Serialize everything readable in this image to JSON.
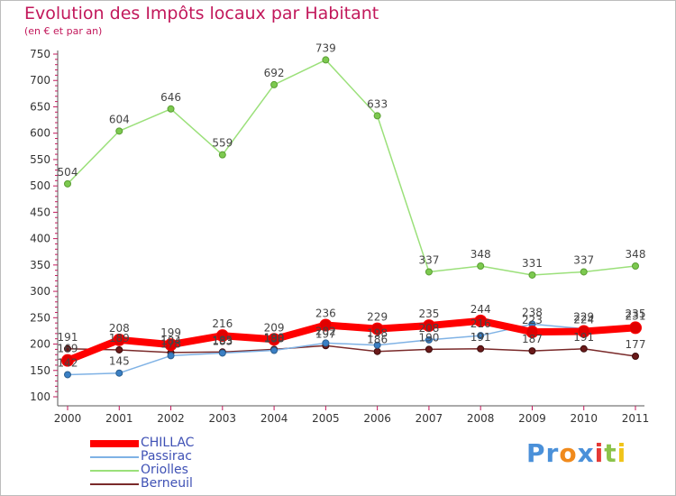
{
  "title": "Evolution des Impôts locaux par Habitant",
  "subtitle": "(en € et par an)",
  "logo": {
    "text": "Proxiti",
    "letters": [
      "P",
      "r",
      "o",
      "x",
      "i",
      "t",
      "i"
    ],
    "colors": [
      "#4a90d9",
      "#4a90d9",
      "#f08a1c",
      "#4a90d9",
      "#e53935",
      "#8bc34a",
      "#f0c419"
    ]
  },
  "chart_data": {
    "type": "line",
    "title": "Evolution des Impôts locaux par Habitant",
    "subtitle": "(en € et par an)",
    "xlabel": "",
    "ylabel": "",
    "categories": [
      "2000",
      "2001",
      "2002",
      "2003",
      "2004",
      "2005",
      "2006",
      "2007",
      "2008",
      "2009",
      "2010",
      "2011"
    ],
    "ylim": [
      100,
      750
    ],
    "yticks": [
      100,
      150,
      200,
      250,
      300,
      350,
      400,
      450,
      500,
      550,
      600,
      650,
      700,
      750
    ],
    "grid": false,
    "legend_position": "bottom-left",
    "series": [
      {
        "name": "CHILLAC",
        "color": "#ff0000",
        "labels": true,
        "values": [
          169,
          208,
          199,
          216,
          209,
          236,
          229,
          235,
          244,
          223,
          224,
          231
        ]
      },
      {
        "name": "Passirac",
        "color": "#5b9bd5",
        "labels": false,
        "values": [
          142,
          145,
          178,
          183,
          188,
          202,
          198,
          208,
          216,
          238,
          229,
          235
        ]
      },
      {
        "name": "Oriolles",
        "color": "#8fd16a",
        "labels": true,
        "values": [
          504,
          604,
          646,
          559,
          692,
          739,
          633,
          337,
          348,
          331,
          337,
          348
        ]
      },
      {
        "name": "Berneuil",
        "color": "#6b1a1a",
        "labels": false,
        "values": [
          191,
          189,
          184,
          185,
          190,
          197,
          186,
          190,
          191,
          187,
          191,
          177
        ]
      }
    ],
    "annotations": [
      {
        "series": "Passirac",
        "category": "2000",
        "text": "142"
      },
      {
        "series": "Passirac",
        "category": "2001",
        "text": "145"
      },
      {
        "series": "Passirac",
        "category": "2002",
        "text": "178"
      },
      {
        "series": "Passirac",
        "category": "2003",
        "text": "183"
      },
      {
        "series": "Passirac",
        "category": "2004",
        "text": "188"
      },
      {
        "series": "Passirac",
        "category": "2005",
        "text": "202"
      },
      {
        "series": "Passirac",
        "category": "2006",
        "text": "198"
      },
      {
        "series": "Passirac",
        "category": "2007",
        "text": "208"
      },
      {
        "series": "Passirac",
        "category": "2008",
        "text": "216"
      },
      {
        "series": "Passirac",
        "category": "2009",
        "text": "238"
      },
      {
        "series": "Passirac",
        "category": "2010",
        "text": "229"
      },
      {
        "series": "Passirac",
        "category": "2011",
        "text": "235"
      },
      {
        "series": "Berneuil",
        "category": "2000",
        "text": "191"
      },
      {
        "series": "Berneuil",
        "category": "2001",
        "text": "189"
      },
      {
        "series": "Berneuil",
        "category": "2002",
        "text": "184"
      },
      {
        "series": "Berneuil",
        "category": "2003",
        "text": "185"
      },
      {
        "series": "Berneuil",
        "category": "2004",
        "text": "190"
      },
      {
        "series": "Berneuil",
        "category": "2005",
        "text": "197"
      },
      {
        "series": "Berneuil",
        "category": "2006",
        "text": "186"
      },
      {
        "series": "Berneuil",
        "category": "2007",
        "text": "190"
      },
      {
        "series": "Berneuil",
        "category": "2008",
        "text": "191"
      },
      {
        "series": "Berneuil",
        "category": "2009",
        "text": "187"
      },
      {
        "series": "Berneuil",
        "category": "2010",
        "text": "191"
      },
      {
        "series": "Berneuil",
        "category": "2011",
        "text": "177"
      }
    ]
  }
}
